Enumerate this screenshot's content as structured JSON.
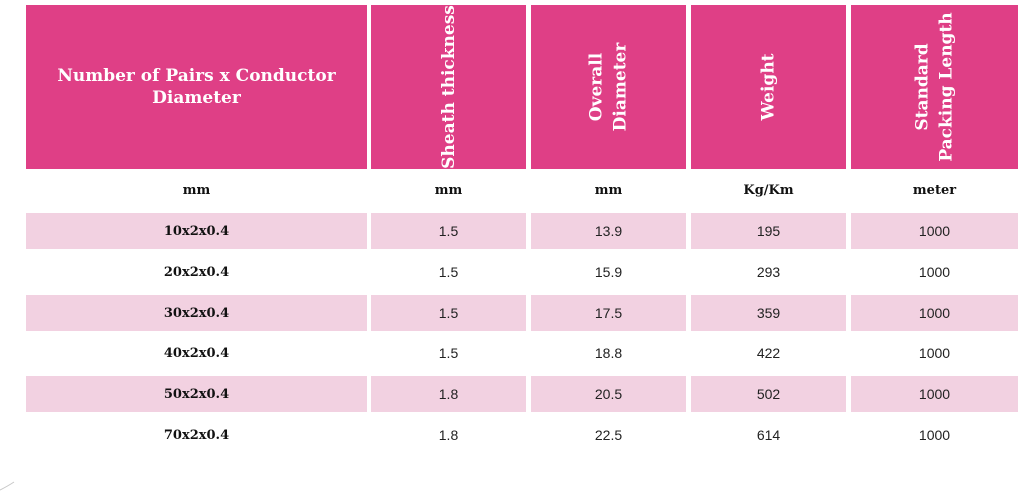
{
  "table": {
    "headers": [
      "Number of Pairs x Conductor Diameter",
      "Sheath thickness",
      "Overall Diameter",
      "Weight",
      "Standard Packing Length"
    ],
    "header_lines": [
      [
        "Number of Pairs x Conductor",
        "Diameter"
      ],
      [
        "Sheath thickness"
      ],
      [
        "Overall",
        "Diameter"
      ],
      [
        "Weight"
      ],
      [
        "Standard",
        "Packing Length"
      ]
    ],
    "units": [
      "mm",
      "mm",
      "mm",
      "Kg/Km",
      "meter"
    ],
    "rows": [
      {
        "size": "10x2x0.4",
        "sheath": "1.5",
        "diameter": "13.9",
        "weight": "195",
        "length": "1000",
        "shaded": true
      },
      {
        "size": "20x2x0.4",
        "sheath": "1.5",
        "diameter": "15.9",
        "weight": "293",
        "length": "1000",
        "shaded": false
      },
      {
        "size": "30x2x0.4",
        "sheath": "1.5",
        "diameter": "17.5",
        "weight": "359",
        "length": "1000",
        "shaded": true
      },
      {
        "size": "40x2x0.4",
        "sheath": "1.5",
        "diameter": "18.8",
        "weight": "422",
        "length": "1000",
        "shaded": false
      },
      {
        "size": "50x2x0.4",
        "sheath": "1.8",
        "diameter": "20.5",
        "weight": "502",
        "length": "1000",
        "shaded": true
      },
      {
        "size": "70x2x0.4",
        "sheath": "1.8",
        "diameter": "22.5",
        "weight": "614",
        "length": "1000",
        "shaded": false
      }
    ]
  },
  "colors": {
    "header_bg": "#df3f86",
    "band_bg": "#f2d1e1",
    "header_text": "#ffffff"
  }
}
